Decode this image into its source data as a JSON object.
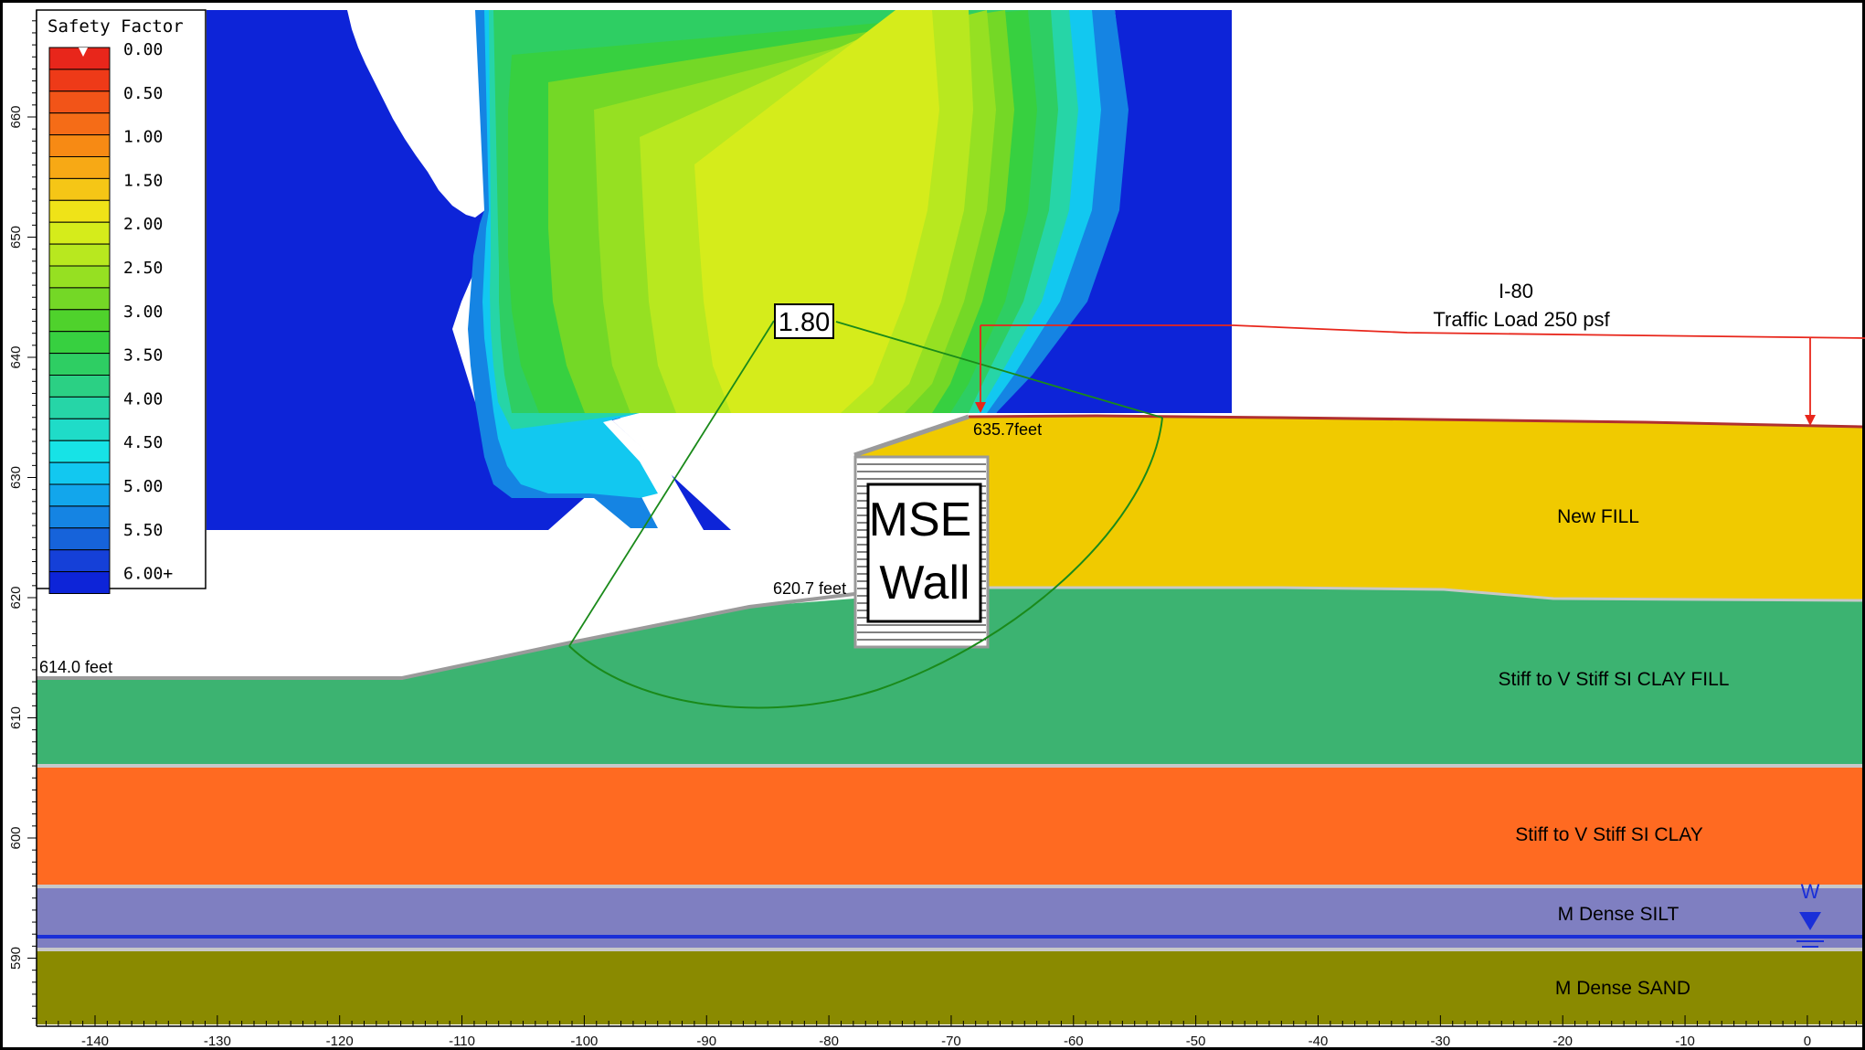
{
  "legend": {
    "title": "Safety Factor",
    "entries": [
      {
        "label": "0.00",
        "color": "#e8261b"
      },
      {
        "label": "",
        "color": "#ee3a18"
      },
      {
        "label": "0.50",
        "color": "#f25418"
      },
      {
        "label": "",
        "color": "#f56c17"
      },
      {
        "label": "1.00",
        "color": "#f78a14"
      },
      {
        "label": "",
        "color": "#f7a915"
      },
      {
        "label": "1.50",
        "color": "#f5c616"
      },
      {
        "label": "",
        "color": "#efe318"
      },
      {
        "label": "2.00",
        "color": "#d5ec1b"
      },
      {
        "label": "",
        "color": "#b8e81f"
      },
      {
        "label": "2.50",
        "color": "#96e022"
      },
      {
        "label": "",
        "color": "#74d826"
      },
      {
        "label": "3.00",
        "color": "#4fd22c"
      },
      {
        "label": "",
        "color": "#37d040"
      },
      {
        "label": "3.50",
        "color": "#2ece63"
      },
      {
        "label": "",
        "color": "#2bd084"
      },
      {
        "label": "4.00",
        "color": "#26d5a7"
      },
      {
        "label": "",
        "color": "#1fdcc8"
      },
      {
        "label": "4.50",
        "color": "#17e3e6"
      },
      {
        "label": "",
        "color": "#12c8f0"
      },
      {
        "label": "5.00",
        "color": "#12a6ec"
      },
      {
        "label": "",
        "color": "#1584e3"
      },
      {
        "label": "5.50",
        "color": "#1663da"
      },
      {
        "label": "",
        "color": "#1540d8"
      },
      {
        "label": "6.00+",
        "color": "#0d24d8"
      }
    ]
  },
  "safety_factor_box": "1.80",
  "wall_label": [
    "MSE",
    "Wall"
  ],
  "annotations": {
    "load_title": "I-80",
    "load_subtitle": "Traffic Load 250 psf",
    "elev_crest": "635.7feet",
    "elev_wall_toe": "620.7 feet",
    "elev_left": "614.0 feet",
    "water_symbol": "W"
  },
  "layers": [
    {
      "name": "New FILL",
      "color": "#f0ca00"
    },
    {
      "name": "Stiff to V Stiff SI CLAY FILL",
      "color": "#3cb371"
    },
    {
      "name": "Stiff to V Stiff SI CLAY",
      "color": "#ff6a21"
    },
    {
      "name": "M Dense SILT",
      "color": "#7f7fc1"
    },
    {
      "name": "M Dense SAND",
      "color": "#8a8a00"
    }
  ],
  "x_axis_ticks": [
    "-140",
    "-130",
    "-120",
    "-110",
    "-100",
    "-90",
    "-80",
    "-70",
    "-60",
    "-50",
    "-40",
    "-30",
    "-20",
    "-10",
    "0"
  ],
  "y_axis_ticks": [
    "660",
    "650",
    "640",
    "630",
    "620",
    "610",
    "600",
    "590"
  ],
  "colors": {
    "slip_surface": "#1a8a1a",
    "traffic_load": "#e8261b",
    "water_table": "#1a2fd8",
    "ground_line": "#9a9a9a"
  }
}
